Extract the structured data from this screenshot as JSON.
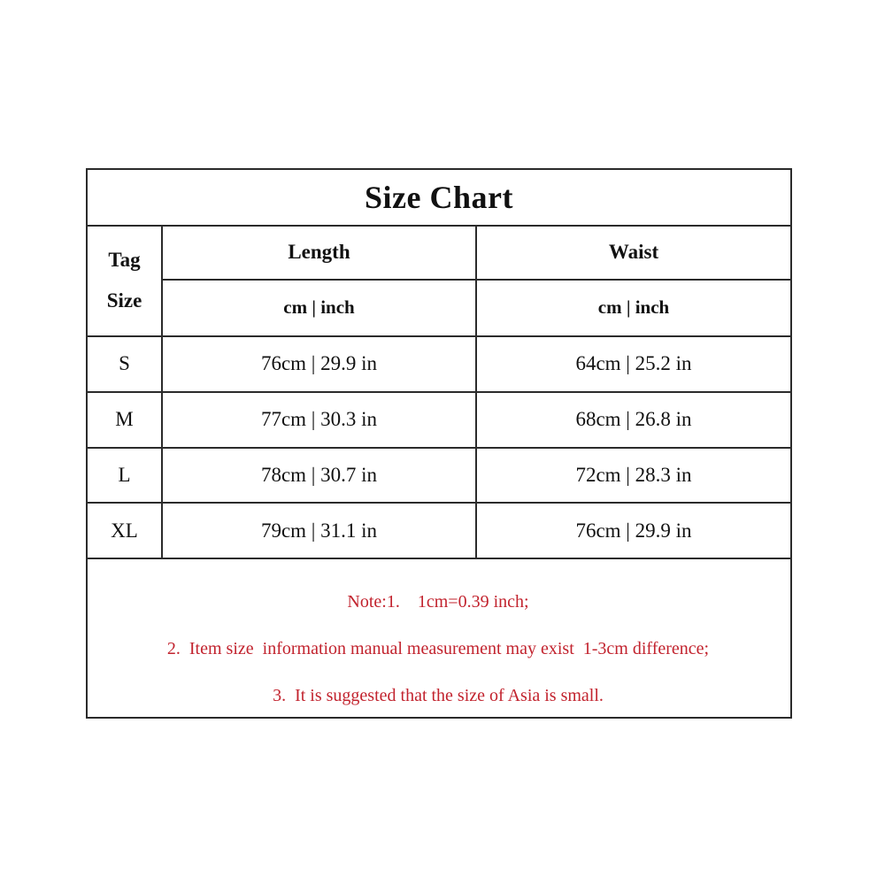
{
  "size_chart": {
    "title": "Size Chart",
    "header": {
      "tag_line1": "Tag",
      "tag_line2": "Size",
      "length_label": "Length",
      "waist_label": "Waist",
      "length_units": "cm | inch",
      "waist_units": "cm | inch"
    },
    "rows": [
      {
        "size": "S",
        "length": "76cm | 29.9 in",
        "waist": "64cm | 25.2 in"
      },
      {
        "size": "M",
        "length": "77cm | 30.3 in",
        "waist": "68cm | 26.8 in"
      },
      {
        "size": "L",
        "length": "78cm | 30.7 in",
        "waist": "72cm | 28.3 in"
      },
      {
        "size": "XL",
        "length": "79cm | 31.1 in",
        "waist": "76cm | 29.9 in"
      }
    ],
    "notes": [
      "Note:1.    1cm=0.39 inch;",
      "2.  Item size  information manual measurement may exist  1-3cm difference;",
      "3.  It is suggested that the size of Asia is small."
    ],
    "colors": {
      "border": "#2b2b2b",
      "text": "#111111",
      "note_red": "#c2232e"
    }
  }
}
